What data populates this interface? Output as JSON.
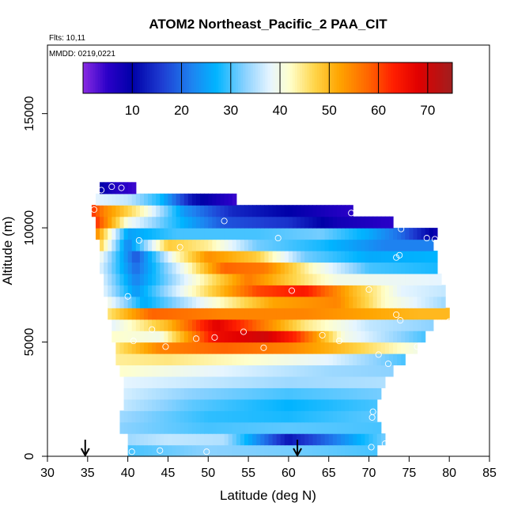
{
  "chart_data": {
    "type": "heatmap",
    "title": "ATOM2 Northeast_Pacific_2 PAA_CIT",
    "flights_label": "Flts: 10,11",
    "date_label": "MMDD: 0219,0221",
    "xlabel": "Latitude (deg N)",
    "ylabel": "Altitude (m)",
    "xlim": [
      30,
      85
    ],
    "ylim": [
      0,
      18000
    ],
    "x_ticks": [
      30,
      35,
      40,
      45,
      50,
      55,
      60,
      65,
      70,
      75,
      80,
      85
    ],
    "y_ticks": [
      0,
      5000,
      10000,
      15000
    ],
    "colorbar": {
      "range": [
        0,
        75
      ],
      "ticks": [
        10,
        20,
        30,
        40,
        50,
        60,
        70
      ],
      "stops": [
        {
          "value": 0,
          "color": "#8a2be2"
        },
        {
          "value": 5,
          "color": "#2a00c8"
        },
        {
          "value": 10,
          "color": "#0000a8"
        },
        {
          "value": 16,
          "color": "#1e3cd2"
        },
        {
          "value": 22,
          "color": "#1e82f0"
        },
        {
          "value": 27,
          "color": "#00b4ff"
        },
        {
          "value": 33,
          "color": "#8cd2ff"
        },
        {
          "value": 38,
          "color": "#e6f5ff"
        },
        {
          "value": 42,
          "color": "#ffffcc"
        },
        {
          "value": 47,
          "color": "#ffd54a"
        },
        {
          "value": 52,
          "color": "#ffa500"
        },
        {
          "value": 58,
          "color": "#ff6400"
        },
        {
          "value": 63,
          "color": "#ff1e00"
        },
        {
          "value": 68,
          "color": "#e10000"
        },
        {
          "value": 75,
          "color": "#a01e1e"
        }
      ]
    },
    "rows": [
      {
        "alt": 0,
        "lat_min": 40.0,
        "lat_max": 71.0,
        "anchors": [
          [
            40,
            30
          ],
          [
            50,
            33
          ],
          [
            60,
            32
          ],
          [
            71,
            30
          ]
        ]
      },
      {
        "alt": 500,
        "lat_min": 40.0,
        "lat_max": 72.0,
        "anchors": [
          [
            40,
            34
          ],
          [
            45,
            36
          ],
          [
            52,
            35
          ],
          [
            60,
            12
          ],
          [
            66,
            22
          ],
          [
            72,
            32
          ]
        ]
      },
      {
        "alt": 1000,
        "lat_min": 39.0,
        "lat_max": 71.5,
        "anchors": [
          [
            39,
            33
          ],
          [
            50,
            30
          ],
          [
            60,
            31
          ],
          [
            71.5,
            30
          ]
        ]
      },
      {
        "alt": 1500,
        "lat_min": 39.0,
        "lat_max": 71.0,
        "anchors": [
          [
            39,
            34
          ],
          [
            50,
            29
          ],
          [
            60,
            28
          ],
          [
            71,
            31
          ]
        ]
      },
      {
        "alt": 2000,
        "lat_min": 39.5,
        "lat_max": 71.0,
        "anchors": [
          [
            39.5,
            36
          ],
          [
            48,
            31
          ],
          [
            60,
            27
          ],
          [
            71,
            30
          ]
        ]
      },
      {
        "alt": 2500,
        "lat_min": 39.5,
        "lat_max": 71.5,
        "anchors": [
          [
            39.5,
            37
          ],
          [
            48,
            33
          ],
          [
            60,
            30
          ],
          [
            71.5,
            32
          ]
        ]
      },
      {
        "alt": 3000,
        "lat_min": 39.5,
        "lat_max": 72.0,
        "anchors": [
          [
            39.5,
            38
          ],
          [
            50,
            36
          ],
          [
            60,
            34
          ],
          [
            72,
            35
          ]
        ]
      },
      {
        "alt": 3500,
        "lat_min": 39.0,
        "lat_max": 73.0,
        "anchors": [
          [
            39,
            42
          ],
          [
            45,
            40
          ],
          [
            55,
            37
          ],
          [
            65,
            34
          ],
          [
            73,
            33
          ]
        ]
      },
      {
        "alt": 4000,
        "lat_min": 38.5,
        "lat_max": 74.5,
        "anchors": [
          [
            38.5,
            44
          ],
          [
            45,
            45
          ],
          [
            55,
            42
          ],
          [
            65,
            38
          ],
          [
            74.5,
            30
          ]
        ]
      },
      {
        "alt": 4500,
        "lat_min": 38.5,
        "lat_max": 76.0,
        "anchors": [
          [
            38.5,
            45
          ],
          [
            44,
            55
          ],
          [
            52,
            58
          ],
          [
            60,
            55
          ],
          [
            66,
            50
          ],
          [
            76,
            40
          ]
        ]
      },
      {
        "alt": 5000,
        "lat_min": 38.0,
        "lat_max": 77.0,
        "anchors": [
          [
            38,
            42
          ],
          [
            44,
            40
          ],
          [
            51,
            66
          ],
          [
            57,
            70
          ],
          [
            61,
            62
          ],
          [
            67,
            40
          ],
          [
            77,
            30
          ]
        ]
      },
      {
        "alt": 5500,
        "lat_min": 38.0,
        "lat_max": 78.0,
        "anchors": [
          [
            38,
            38
          ],
          [
            45,
            50
          ],
          [
            51,
            68
          ],
          [
            55,
            60
          ],
          [
            62,
            45
          ],
          [
            70,
            36
          ],
          [
            78,
            33
          ]
        ]
      },
      {
        "alt": 6000,
        "lat_min": 37.5,
        "lat_max": 80.0,
        "anchors": [
          [
            37.5,
            45
          ],
          [
            43,
            58
          ],
          [
            52,
            55
          ],
          [
            62,
            55
          ],
          [
            70,
            52
          ],
          [
            76,
            50
          ],
          [
            80,
            50
          ]
        ]
      },
      {
        "alt": 6500,
        "lat_min": 37.5,
        "lat_max": 79.5,
        "anchors": [
          [
            37.5,
            40
          ],
          [
            42,
            26
          ],
          [
            50,
            40
          ],
          [
            58,
            52
          ],
          [
            66,
            55
          ],
          [
            72,
            42
          ],
          [
            79.5,
            34
          ]
        ]
      },
      {
        "alt": 7000,
        "lat_min": 37.0,
        "lat_max": 79.5,
        "anchors": [
          [
            37,
            38
          ],
          [
            41,
            24
          ],
          [
            48,
            42
          ],
          [
            56,
            60
          ],
          [
            62,
            64
          ],
          [
            68,
            50
          ],
          [
            74,
            38
          ],
          [
            79.5,
            36
          ]
        ]
      },
      {
        "alt": 7500,
        "lat_min": 37.0,
        "lat_max": 79.0,
        "anchors": [
          [
            37,
            37
          ],
          [
            41,
            22
          ],
          [
            48,
            40
          ],
          [
            55,
            56
          ],
          [
            60,
            48
          ],
          [
            66,
            40
          ],
          [
            79,
            38
          ]
        ]
      },
      {
        "alt": 8000,
        "lat_min": 36.5,
        "lat_max": 78.5,
        "anchors": [
          [
            36.5,
            38
          ],
          [
            41,
            20
          ],
          [
            47,
            40
          ],
          [
            52,
            58
          ],
          [
            57,
            56
          ],
          [
            63,
            42
          ],
          [
            70,
            30
          ],
          [
            78.5,
            28
          ]
        ]
      },
      {
        "alt": 8500,
        "lat_min": 36.5,
        "lat_max": 78.5,
        "anchors": [
          [
            36.5,
            40
          ],
          [
            41,
            18
          ],
          [
            46,
            42
          ],
          [
            50,
            54
          ],
          [
            56,
            48
          ],
          [
            62,
            32
          ],
          [
            70,
            26
          ],
          [
            78.5,
            27
          ]
        ]
      },
      {
        "alt": 9000,
        "lat_min": 36.5,
        "lat_max": 78.0,
        "anchors": [
          [
            36.5,
            48
          ],
          [
            40,
            22
          ],
          [
            45,
            48
          ],
          [
            50,
            44
          ],
          [
            56,
            32
          ],
          [
            64,
            28
          ],
          [
            72,
            22
          ],
          [
            78,
            22
          ]
        ]
      },
      {
        "alt": 9500,
        "lat_min": 36.0,
        "lat_max": 78.5,
        "anchors": [
          [
            36,
            55
          ],
          [
            40,
            25
          ],
          [
            46,
            30
          ],
          [
            56,
            30
          ],
          [
            64,
            32
          ],
          [
            70,
            26
          ],
          [
            74,
            20
          ],
          [
            78.5,
            8
          ]
        ]
      },
      {
        "alt": 10000,
        "lat_min": 36.0,
        "lat_max": 73.0,
        "anchors": [
          [
            36,
            62
          ],
          [
            40,
            40
          ],
          [
            45,
            30
          ],
          [
            52,
            18
          ],
          [
            60,
            15
          ],
          [
            66,
            8
          ],
          [
            73,
            5
          ]
        ]
      },
      {
        "alt": 10500,
        "lat_min": 35.5,
        "lat_max": 68.0,
        "anchors": [
          [
            35.5,
            62
          ],
          [
            37,
            55
          ],
          [
            42,
            42
          ],
          [
            47,
            24
          ],
          [
            53,
            14
          ],
          [
            60,
            10
          ],
          [
            68,
            5
          ]
        ]
      },
      {
        "alt": 11000,
        "lat_min": 36.0,
        "lat_max": 53.5,
        "anchors": [
          [
            36,
            38
          ],
          [
            40,
            36
          ],
          [
            44,
            28
          ],
          [
            48,
            12
          ],
          [
            53.5,
            4
          ]
        ]
      },
      {
        "alt": 11500,
        "lat_min": 36.5,
        "lat_max": 41.0,
        "anchors": [
          [
            36.5,
            10
          ],
          [
            38.5,
            6
          ],
          [
            41,
            4
          ]
        ]
      }
    ],
    "sample_points": [
      [
        36.7,
        11650
      ],
      [
        38.0,
        11800
      ],
      [
        39.2,
        11750
      ],
      [
        35.8,
        10800
      ],
      [
        52.0,
        10300
      ],
      [
        67.8,
        10650
      ],
      [
        74.0,
        9950
      ],
      [
        41.4,
        9450
      ],
      [
        58.7,
        9550
      ],
      [
        77.2,
        9550
      ],
      [
        78.2,
        9500
      ],
      [
        46.5,
        9150
      ],
      [
        73.4,
        8700
      ],
      [
        73.8,
        8800
      ],
      [
        40.0,
        7000
      ],
      [
        60.4,
        7250
      ],
      [
        70.0,
        7300
      ],
      [
        73.4,
        6200
      ],
      [
        80.0,
        5900
      ],
      [
        73.9,
        5950
      ],
      [
        43.0,
        5550
      ],
      [
        54.4,
        5450
      ],
      [
        48.5,
        5150
      ],
      [
        50.8,
        5200
      ],
      [
        64.2,
        5300
      ],
      [
        66.3,
        5050
      ],
      [
        40.7,
        5050
      ],
      [
        44.7,
        4800
      ],
      [
        56.9,
        4750
      ],
      [
        71.2,
        4450
      ],
      [
        72.4,
        4050
      ],
      [
        76.0,
        4800
      ],
      [
        70.5,
        1950
      ],
      [
        70.4,
        1700
      ],
      [
        40.5,
        200
      ],
      [
        44.0,
        250
      ],
      [
        49.8,
        200
      ],
      [
        70.3,
        400
      ],
      [
        72.0,
        550
      ]
    ],
    "arrows": [
      34.7,
      61.1
    ]
  }
}
